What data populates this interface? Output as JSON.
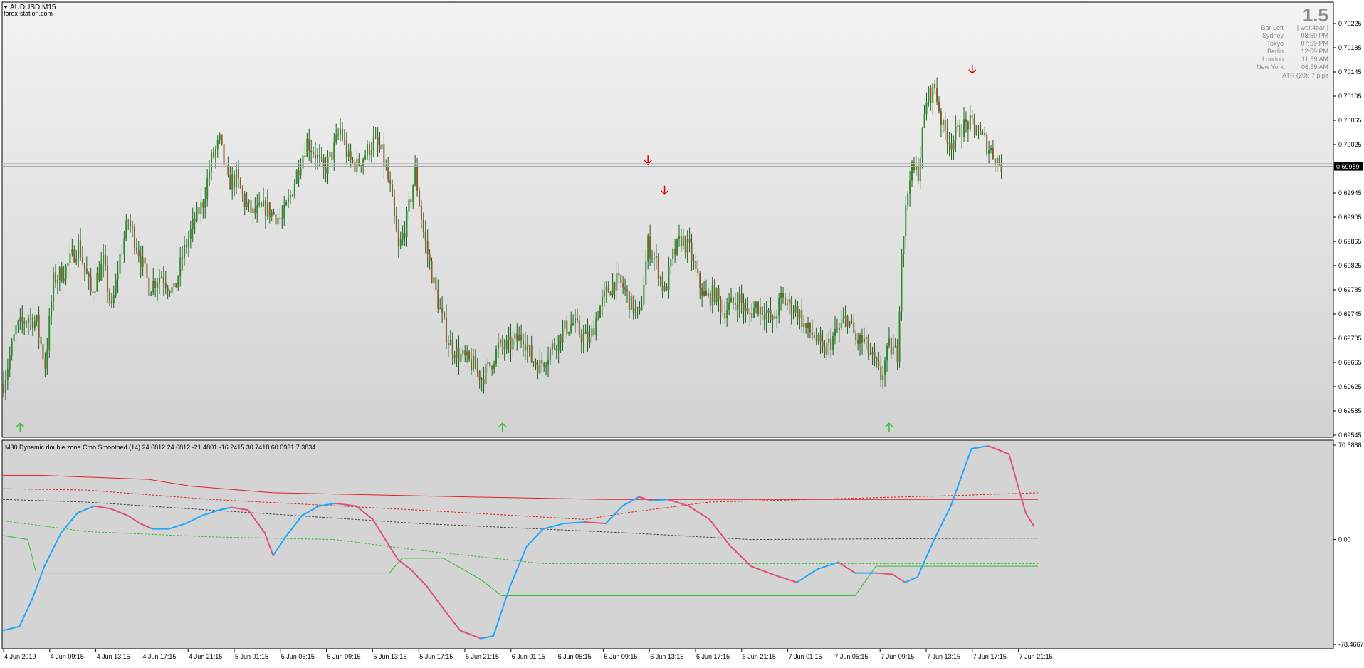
{
  "main_panel": {
    "symbol": "AUDUSD,M15",
    "watermark": "forex-station.com",
    "bar_left_big": "1.5",
    "info_lines": [
      {
        "label": "Bar Left",
        "value": "[ wait4bar ]"
      },
      {
        "label": "Sydney",
        "value": "08:59 PM"
      },
      {
        "label": "Tokyo",
        "value": "07:59 PM"
      },
      {
        "label": "Berlin",
        "value": "12:59 PM"
      },
      {
        "label": "London",
        "value": "11:59 AM"
      },
      {
        "label": "New York",
        "value": "06:59 AM"
      }
    ],
    "atr_text": "ATR (20): 7 pips",
    "current_price": "0.69989",
    "price_ticks": [
      "0.70225",
      "0.70185",
      "0.70145",
      "0.70105",
      "0.70065",
      "0.70025",
      "0.69945",
      "0.69905",
      "0.69865",
      "0.69825",
      "0.69785",
      "0.69745",
      "0.69705",
      "0.69665",
      "0.69625",
      "0.69585",
      "0.69545"
    ]
  },
  "indicator_panel": {
    "title": "M30 Dynamic double zone Cmo Smoothed (14) 24.6812 24.6812 -21.4801 -16.2415 30.7418 60.0931 7.3834",
    "level_ticks": [
      "70.5888",
      "0.00",
      "-78.4667"
    ]
  },
  "time_labels": [
    "4 Jun 2019",
    "4 Jun 09:15",
    "4 Jun 13:15",
    "4 Jun 17:15",
    "4 Jun 21:15",
    "5 Jun 01:15",
    "5 Jun 05:15",
    "5 Jun 09:15",
    "5 Jun 13:15",
    "5 Jun 17:15",
    "5 Jun 21:15",
    "6 Jun 01:15",
    "6 Jun 05:15",
    "6 Jun 09:15",
    "6 Jun 13:15",
    "6 Jun 17:15",
    "6 Jun 21:15",
    "7 Jun 01:15",
    "7 Jun 05:15",
    "7 Jun 09:15",
    "7 Jun 13:15",
    "7 Jun 17:15",
    "7 Jun 21:15"
  ],
  "colors": {
    "bull_candle": "#2d8a2d",
    "bear_candle": "#8b5a2b",
    "wick": "#1f5f1f",
    "up_arrow": "#34c034",
    "down_arrow": "#e00000",
    "cmo_rising": "#1ea7ff",
    "cmo_falling": "#e0507a",
    "upper_zone": "#e02020",
    "lower_zone": "#30c030",
    "middle_zone": "#404040"
  },
  "chart_data": {
    "type": "candlestick",
    "path": [
      [
        0,
        0.6963
      ],
      [
        6,
        0.6972
      ],
      [
        12,
        0.6974
      ],
      [
        16,
        0.6973
      ],
      [
        20,
        0.6966
      ],
      [
        24,
        0.698
      ],
      [
        30,
        0.6982
      ],
      [
        36,
        0.6986
      ],
      [
        42,
        0.6978
      ],
      [
        48,
        0.6983
      ],
      [
        52,
        0.6975
      ],
      [
        56,
        0.6984
      ],
      [
        60,
        0.699
      ],
      [
        64,
        0.6986
      ],
      [
        70,
        0.6979
      ],
      [
        76,
        0.6981
      ],
      [
        82,
        0.6978
      ],
      [
        86,
        0.6984
      ],
      [
        92,
        0.699
      ],
      [
        96,
        0.6993
      ],
      [
        100,
        0.7
      ],
      [
        104,
        0.7003
      ],
      [
        108,
        0.6996
      ],
      [
        112,
        0.6997
      ],
      [
        116,
        0.6993
      ],
      [
        120,
        0.6991
      ],
      [
        126,
        0.6992
      ],
      [
        130,
        0.6991
      ],
      [
        134,
        0.699
      ],
      [
        138,
        0.6994
      ],
      [
        142,
        0.6999
      ],
      [
        146,
        0.7003
      ],
      [
        150,
        0.7001
      ],
      [
        154,
        0.6998
      ],
      [
        158,
        0.7001
      ],
      [
        162,
        0.7005
      ],
      [
        166,
        0.7
      ],
      [
        170,
        0.6999
      ],
      [
        174,
        0.7001
      ],
      [
        178,
        0.7003
      ],
      [
        182,
        0.7001
      ],
      [
        186,
        0.6995
      ],
      [
        190,
        0.6985
      ],
      [
        194,
        0.699
      ],
      [
        198,
        0.6998
      ],
      [
        202,
        0.6988
      ],
      [
        206,
        0.6981
      ],
      [
        210,
        0.6975
      ],
      [
        214,
        0.697
      ],
      [
        218,
        0.6968
      ],
      [
        222,
        0.6967
      ],
      [
        226,
        0.6966
      ],
      [
        230,
        0.6964
      ],
      [
        234,
        0.6966
      ],
      [
        238,
        0.6969
      ],
      [
        242,
        0.6969
      ],
      [
        246,
        0.697
      ],
      [
        250,
        0.6971
      ],
      [
        254,
        0.6967
      ],
      [
        258,
        0.6966
      ],
      [
        262,
        0.6968
      ],
      [
        266,
        0.697
      ],
      [
        270,
        0.6972
      ],
      [
        274,
        0.6973
      ],
      [
        278,
        0.6971
      ],
      [
        282,
        0.697
      ],
      [
        286,
        0.6975
      ],
      [
        290,
        0.6978
      ],
      [
        294,
        0.698
      ],
      [
        298,
        0.6979
      ],
      [
        302,
        0.6976
      ],
      [
        306,
        0.6974
      ],
      [
        310,
        0.6986
      ],
      [
        314,
        0.6983
      ],
      [
        318,
        0.6978
      ],
      [
        322,
        0.6984
      ],
      [
        326,
        0.6987
      ],
      [
        330,
        0.6985
      ],
      [
        334,
        0.698
      ],
      [
        338,
        0.6977
      ],
      [
        342,
        0.6978
      ],
      [
        346,
        0.6975
      ],
      [
        350,
        0.6976
      ],
      [
        354,
        0.6977
      ],
      [
        358,
        0.6974
      ],
      [
        362,
        0.6976
      ],
      [
        366,
        0.6975
      ],
      [
        370,
        0.6973
      ],
      [
        374,
        0.6977
      ],
      [
        378,
        0.6976
      ],
      [
        382,
        0.6975
      ],
      [
        386,
        0.6972
      ],
      [
        390,
        0.6971
      ],
      [
        394,
        0.6968
      ],
      [
        398,
        0.697
      ],
      [
        402,
        0.6972
      ],
      [
        406,
        0.6974
      ],
      [
        410,
        0.697
      ],
      [
        414,
        0.697
      ],
      [
        418,
        0.6967
      ],
      [
        422,
        0.6964
      ],
      [
        426,
        0.6969
      ],
      [
        430,
        0.6968
      ],
      [
        432,
        0.6985
      ],
      [
        436,
        0.6998
      ],
      [
        440,
        0.6998
      ],
      [
        444,
        0.701
      ],
      [
        448,
        0.7012
      ],
      [
        452,
        0.7005
      ],
      [
        456,
        0.7003
      ],
      [
        460,
        0.7005
      ],
      [
        464,
        0.7006
      ],
      [
        468,
        0.7005
      ],
      [
        472,
        0.7003
      ],
      [
        476,
        0.7001
      ],
      [
        480,
        0.6999
      ]
    ],
    "up_arrows": [
      {
        "bar": 8,
        "price": 0.696
      },
      {
        "bar": 240,
        "price": 0.696
      },
      {
        "bar": 426,
        "price": 0.696
      }
    ],
    "down_arrows": [
      {
        "bar": 310,
        "price": 0.6996
      },
      {
        "bar": 318,
        "price": 0.6991
      },
      {
        "bar": 466,
        "price": 0.7011
      }
    ],
    "indicator": {
      "ylim": [
        -78.4667,
        70.5888
      ],
      "cmo": [
        [
          0,
          -68
        ],
        [
          8,
          -65
        ],
        [
          14,
          -45
        ],
        [
          20,
          -20
        ],
        [
          28,
          5
        ],
        [
          36,
          20
        ],
        [
          44,
          25
        ],
        [
          52,
          23
        ],
        [
          60,
          18
        ],
        [
          66,
          12
        ],
        [
          72,
          8
        ],
        [
          80,
          8
        ],
        [
          88,
          12
        ],
        [
          96,
          18
        ],
        [
          104,
          22
        ],
        [
          110,
          24
        ],
        [
          118,
          22
        ],
        [
          126,
          5
        ],
        [
          130,
          -12
        ],
        [
          136,
          2
        ],
        [
          144,
          18
        ],
        [
          152,
          25
        ],
        [
          160,
          27
        ],
        [
          170,
          25
        ],
        [
          178,
          15
        ],
        [
          184,
          0
        ],
        [
          190,
          -15
        ],
        [
          196,
          -22
        ],
        [
          204,
          -35
        ],
        [
          212,
          -52
        ],
        [
          220,
          -68
        ],
        [
          230,
          -74
        ],
        [
          236,
          -72
        ],
        [
          244,
          -35
        ],
        [
          252,
          -5
        ],
        [
          260,
          8
        ],
        [
          270,
          12
        ],
        [
          280,
          13
        ],
        [
          290,
          12
        ],
        [
          298,
          25
        ],
        [
          306,
          32
        ],
        [
          312,
          29
        ],
        [
          320,
          30
        ],
        [
          330,
          25
        ],
        [
          340,
          15
        ],
        [
          350,
          -5
        ],
        [
          360,
          -20
        ],
        [
          372,
          -27
        ],
        [
          382,
          -32
        ],
        [
          392,
          -22
        ],
        [
          402,
          -17
        ],
        [
          410,
          -25
        ],
        [
          420,
          -25
        ],
        [
          428,
          -26
        ],
        [
          434,
          -32
        ],
        [
          440,
          -28
        ],
        [
          448,
          0
        ],
        [
          456,
          25
        ],
        [
          466,
          68
        ],
        [
          474,
          70
        ],
        [
          484,
          64
        ],
        [
          492,
          20
        ],
        [
          496,
          10
        ]
      ],
      "upper_solid": [
        [
          0,
          48
        ],
        [
          18,
          48
        ],
        [
          70,
          45
        ],
        [
          90,
          40
        ],
        [
          130,
          35
        ],
        [
          220,
          32
        ],
        [
          290,
          30
        ],
        [
          498,
          30
        ]
      ],
      "upper_dashed": [
        [
          0,
          38
        ],
        [
          40,
          37
        ],
        [
          100,
          30
        ],
        [
          200,
          22
        ],
        [
          280,
          15
        ],
        [
          300,
          20
        ],
        [
          340,
          28
        ],
        [
          460,
          33
        ],
        [
          498,
          35
        ]
      ],
      "middle_dashed": [
        [
          0,
          30
        ],
        [
          40,
          28
        ],
        [
          120,
          20
        ],
        [
          200,
          12
        ],
        [
          300,
          5
        ],
        [
          360,
          0
        ],
        [
          480,
          1
        ],
        [
          498,
          1
        ]
      ],
      "lower_dashed": [
        [
          0,
          14
        ],
        [
          20,
          10
        ],
        [
          40,
          6
        ],
        [
          100,
          2
        ],
        [
          160,
          0
        ],
        [
          200,
          -8
        ],
        [
          260,
          -18
        ],
        [
          300,
          -18
        ],
        [
          398,
          -18
        ],
        [
          420,
          -18
        ],
        [
          498,
          -18
        ]
      ],
      "lower_solid": [
        [
          0,
          3
        ],
        [
          12,
          0
        ],
        [
          16,
          -25
        ],
        [
          20,
          -25
        ],
        [
          186,
          -25
        ],
        [
          192,
          -14
        ],
        [
          212,
          -14
        ],
        [
          230,
          -30
        ],
        [
          240,
          -42
        ],
        [
          250,
          -42
        ],
        [
          410,
          -42
        ],
        [
          420,
          -20
        ],
        [
          440,
          -20
        ],
        [
          498,
          -20
        ]
      ]
    }
  }
}
